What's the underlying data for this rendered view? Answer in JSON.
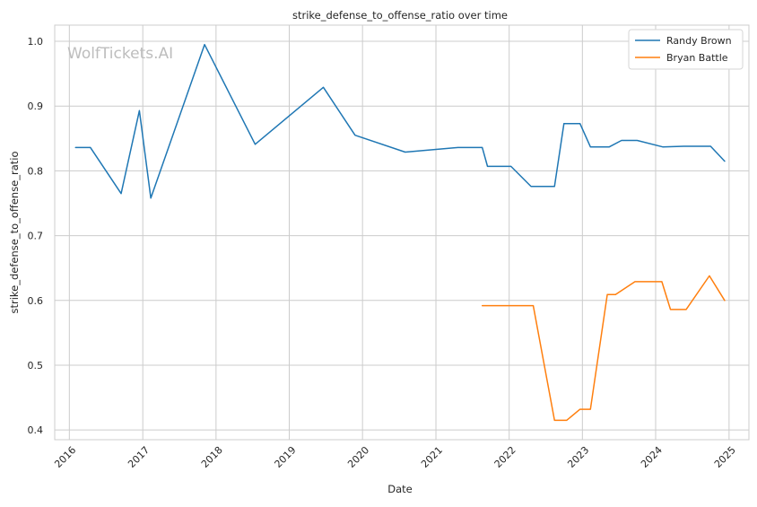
{
  "chart_data": {
    "type": "line",
    "title": "strike_defense_to_offense_ratio over time",
    "xlabel": "Date",
    "ylabel": "strike_defense_to_offense_ratio",
    "watermark": "WolfTickets.AI",
    "legend_position": "top-right",
    "grid": true,
    "xlim": [
      "2015-10-20",
      "2025-04-10"
    ],
    "ylim": [
      0.385,
      1.025
    ],
    "x_ticks": [
      "2016-01-01",
      "2017-01-01",
      "2018-01-01",
      "2019-01-01",
      "2020-01-01",
      "2021-01-01",
      "2022-01-01",
      "2023-01-01",
      "2024-01-01",
      "2025-01-01"
    ],
    "x_tick_labels": [
      "2016",
      "2017",
      "2018",
      "2019",
      "2020",
      "2021",
      "2022",
      "2023",
      "2024",
      "2025"
    ],
    "y_ticks": [
      0.4,
      0.5,
      0.6,
      0.7,
      0.8,
      0.9,
      1.0
    ],
    "y_tick_labels": [
      "0.4",
      "0.5",
      "0.6",
      "0.7",
      "0.8",
      "0.9",
      "1.0"
    ],
    "series": [
      {
        "name": "Randy Brown",
        "color": "#1f77b4",
        "points": [
          {
            "x": "2016-02-01",
            "y": 0.836
          },
          {
            "x": "2016-04-15",
            "y": 0.836
          },
          {
            "x": "2016-09-15",
            "y": 0.765
          },
          {
            "x": "2016-12-15",
            "y": 0.893
          },
          {
            "x": "2017-02-10",
            "y": 0.758
          },
          {
            "x": "2017-11-05",
            "y": 0.995
          },
          {
            "x": "2018-07-15",
            "y": 0.841
          },
          {
            "x": "2019-06-20",
            "y": 0.929
          },
          {
            "x": "2019-11-25",
            "y": 0.855
          },
          {
            "x": "2020-08-01",
            "y": 0.829
          },
          {
            "x": "2021-04-20",
            "y": 0.836
          },
          {
            "x": "2021-08-20",
            "y": 0.836
          },
          {
            "x": "2021-09-15",
            "y": 0.807
          },
          {
            "x": "2022-01-10",
            "y": 0.807
          },
          {
            "x": "2022-04-20",
            "y": 0.776
          },
          {
            "x": "2022-08-15",
            "y": 0.776
          },
          {
            "x": "2022-10-01",
            "y": 0.873
          },
          {
            "x": "2022-12-20",
            "y": 0.873
          },
          {
            "x": "2023-02-10",
            "y": 0.837
          },
          {
            "x": "2023-05-15",
            "y": 0.837
          },
          {
            "x": "2023-07-15",
            "y": 0.847
          },
          {
            "x": "2023-10-01",
            "y": 0.847
          },
          {
            "x": "2024-02-05",
            "y": 0.837
          },
          {
            "x": "2024-05-20",
            "y": 0.838
          },
          {
            "x": "2024-10-01",
            "y": 0.838
          },
          {
            "x": "2024-12-10",
            "y": 0.815
          }
        ]
      },
      {
        "name": "Bryan Battle",
        "color": "#ff7f0e",
        "points": [
          {
            "x": "2021-08-20",
            "y": 0.592
          },
          {
            "x": "2022-05-01",
            "y": 0.592
          },
          {
            "x": "2022-08-15",
            "y": 0.415
          },
          {
            "x": "2022-10-15",
            "y": 0.415
          },
          {
            "x": "2022-12-20",
            "y": 0.432
          },
          {
            "x": "2023-02-10",
            "y": 0.432
          },
          {
            "x": "2023-05-05",
            "y": 0.609
          },
          {
            "x": "2023-06-15",
            "y": 0.609
          },
          {
            "x": "2023-09-20",
            "y": 0.629
          },
          {
            "x": "2024-02-01",
            "y": 0.629
          },
          {
            "x": "2024-03-15",
            "y": 0.586
          },
          {
            "x": "2024-06-01",
            "y": 0.586
          },
          {
            "x": "2024-09-25",
            "y": 0.638
          },
          {
            "x": "2024-12-10",
            "y": 0.6
          }
        ]
      }
    ]
  }
}
